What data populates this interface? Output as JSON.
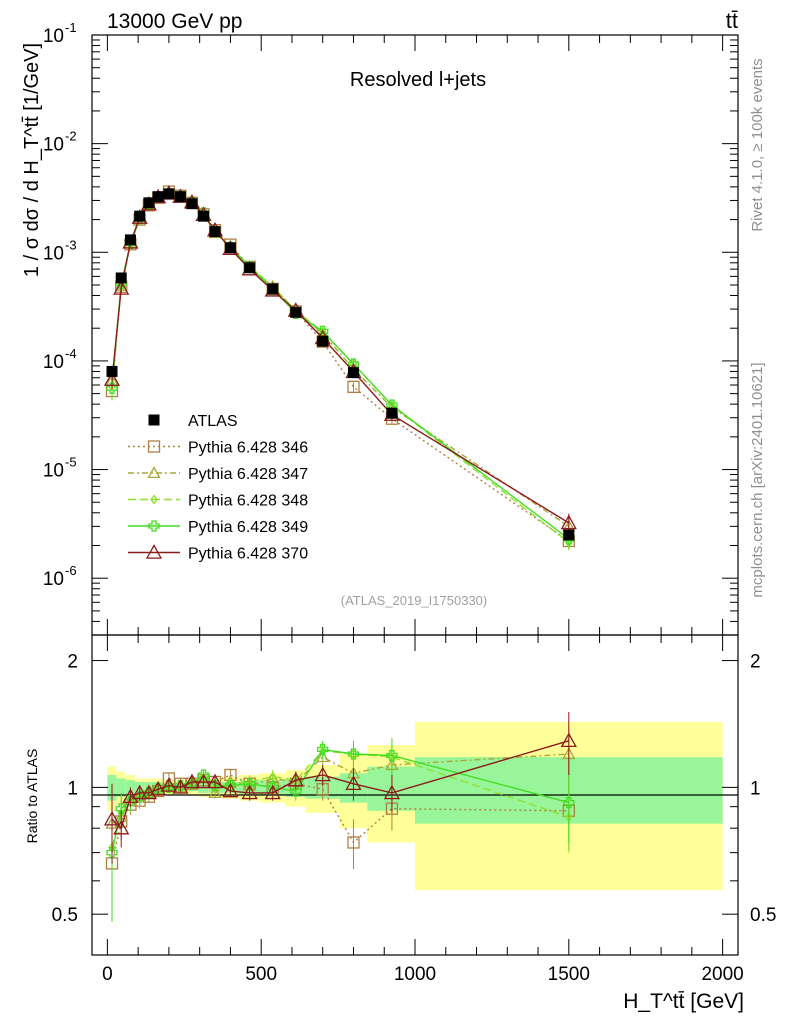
{
  "header": {
    "energy_label": "13000 GeV pp",
    "process_label": "tt̄",
    "panel_title": "Resolved l+jets",
    "analysis_id": "(ATLAS_2019_I1750330)",
    "rivet_label": "Rivet 4.1.0, ≥ 100k events",
    "mcplots_label": "mcplots.cern.ch [arXiv:2401.10621]"
  },
  "axes": {
    "main_ylabel": "1 / σ dσ / d H_T^tt̄ [1/GeV]",
    "ratio_ylabel": "Ratio to ATLAS",
    "xlabel": "H_T^tt̄ [GeV]",
    "x_ticks": [
      "0",
      "500",
      "1000",
      "1500",
      "2000"
    ],
    "main_y_ticks": [
      "10^-1",
      "10^-2",
      "10^-3",
      "10^-4",
      "10^-5",
      "10^-6"
    ],
    "ratio_y_ticks": [
      "0.5",
      "1",
      "2"
    ]
  },
  "chart_data": {
    "type": "line",
    "title": "Resolved l+jets",
    "xlabel": "H_T^tt̄ [GeV]",
    "ylabel": "1 / σ dσ / d H_T^tt̄ [1/GeV]",
    "xlim": [
      -50,
      2050
    ],
    "ylim": [
      3e-07,
      0.1
    ],
    "yscale": "log",
    "ratio_ylim": [
      0.4,
      2.3
    ],
    "x": [
      15,
      45,
      75,
      105,
      135,
      165,
      200,
      237.5,
      275,
      312.5,
      350,
      400,
      462.5,
      537.5,
      612.5,
      700,
      800,
      925,
      1500
    ],
    "data": {
      "name": "ATLAS",
      "color": "#000000",
      "values": [
        8e-05,
        0.00058,
        0.0013,
        0.00215,
        0.00285,
        0.00325,
        0.00345,
        0.00325,
        0.0028,
        0.00215,
        0.00155,
        0.0011,
        0.00072,
        0.00046,
        0.00028,
        0.000152,
        7.8e-05,
        3.3e-05,
        2.5e-06
      ],
      "band_edges": [
        0,
        30,
        60,
        90,
        120,
        150,
        180,
        220,
        255,
        295,
        330,
        370,
        430,
        495,
        580,
        645,
        755,
        845,
        1000,
        2000
      ],
      "band_inner": [
        0.07,
        0.05,
        0.04,
        0.03,
        0.03,
        0.03,
        0.02,
        0.02,
        0.02,
        0.03,
        0.03,
        0.03,
        0.04,
        0.04,
        0.05,
        0.06,
        0.08,
        0.12,
        0.18
      ],
      "band_outer": [
        0.12,
        0.09,
        0.07,
        0.05,
        0.05,
        0.05,
        0.04,
        0.04,
        0.04,
        0.05,
        0.05,
        0.06,
        0.07,
        0.08,
        0.1,
        0.13,
        0.2,
        0.26,
        0.43
      ]
    },
    "series": [
      {
        "name": "Pythia 6.428 346",
        "color": "#b08040",
        "marker": "square",
        "dash": "2,3",
        "ratio": [
          0.66,
          0.83,
          0.91,
          0.93,
          0.95,
          0.98,
          1.05,
          1.02,
          1.02,
          1.04,
          1.03,
          1.07,
          1.02,
          1.0,
          1.02,
          0.99,
          0.74,
          0.89,
          0.88
        ],
        "err": [
          0.18,
          0.08,
          0.05,
          0.04,
          0.03,
          0.03,
          0.03,
          0.03,
          0.03,
          0.03,
          0.03,
          0.03,
          0.04,
          0.04,
          0.05,
          0.06,
          0.1,
          0.1,
          0.17
        ]
      },
      {
        "name": "Pythia 6.428 347",
        "color": "#a8a838",
        "marker": "triangle",
        "dash": "6,3,2,3",
        "ratio": [
          0.82,
          0.85,
          0.93,
          0.95,
          0.97,
          0.99,
          1.01,
          1.0,
          1.02,
          1.05,
          0.97,
          1.03,
          1.01,
          1.05,
          1.03,
          1.18,
          1.08,
          1.13,
          1.2
        ],
        "err": [
          0.2,
          0.08,
          0.05,
          0.04,
          0.03,
          0.03,
          0.03,
          0.03,
          0.03,
          0.03,
          0.03,
          0.03,
          0.04,
          0.04,
          0.05,
          0.06,
          0.09,
          0.11,
          0.2
        ]
      },
      {
        "name": "Pythia 6.428 348",
        "color": "#90e030",
        "marker": "diamond",
        "dash": "8,4",
        "ratio": [
          0.72,
          0.87,
          0.92,
          0.94,
          0.96,
          0.99,
          1.0,
          1.0,
          1.03,
          1.06,
          1.0,
          1.02,
          1.03,
          1.06,
          1.04,
          1.22,
          1.2,
          1.18,
          0.85
        ],
        "err": [
          0.2,
          0.08,
          0.05,
          0.04,
          0.03,
          0.03,
          0.03,
          0.03,
          0.03,
          0.03,
          0.03,
          0.03,
          0.04,
          0.04,
          0.05,
          0.06,
          0.09,
          0.11,
          0.15
        ]
      },
      {
        "name": "Pythia 6.428 349",
        "color": "#44dd22",
        "marker": "cross",
        "dash": "",
        "ratio": [
          0.7,
          0.89,
          0.93,
          0.95,
          0.97,
          0.99,
          1.0,
          1.01,
          1.02,
          1.07,
          1.01,
          1.01,
          1.02,
          1.0,
          0.98,
          1.23,
          1.2,
          1.19,
          0.92
        ],
        "err": [
          0.22,
          0.08,
          0.05,
          0.04,
          0.03,
          0.03,
          0.03,
          0.03,
          0.03,
          0.03,
          0.03,
          0.03,
          0.04,
          0.04,
          0.05,
          0.06,
          0.09,
          0.12,
          0.18
        ]
      },
      {
        "name": "Pythia 6.428 370",
        "color": "#8b1a1a",
        "marker": "triangle-open",
        "dash": "",
        "ratio": [
          0.84,
          0.8,
          0.95,
          0.97,
          0.97,
          0.99,
          1.01,
          1.0,
          1.03,
          1.03,
          1.03,
          0.98,
          0.97,
          0.97,
          1.04,
          1.07,
          1.02,
          0.97,
          1.29
        ],
        "err": [
          0.18,
          0.08,
          0.05,
          0.04,
          0.03,
          0.03,
          0.03,
          0.03,
          0.03,
          0.03,
          0.03,
          0.03,
          0.04,
          0.04,
          0.05,
          0.06,
          0.09,
          0.1,
          0.22
        ]
      }
    ]
  }
}
